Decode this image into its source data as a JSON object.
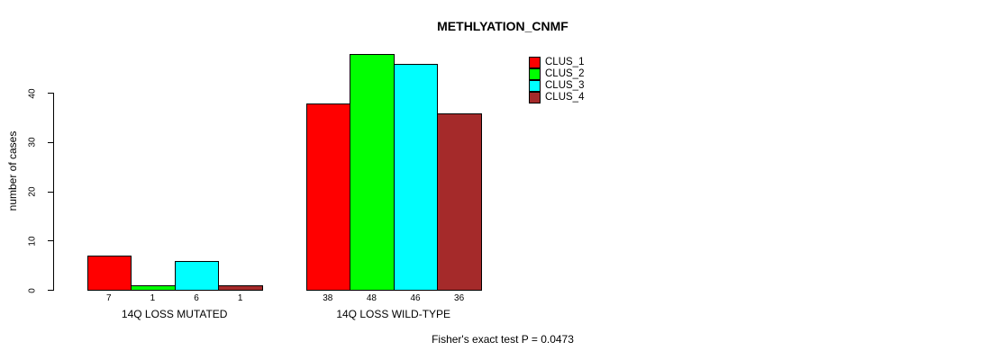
{
  "chart_data": {
    "type": "bar",
    "title": "METHLYATION_CNMF",
    "ylabel": "number of cases",
    "xlabel": "",
    "yticks": [
      0,
      10,
      20,
      30,
      40
    ],
    "ylim": [
      0,
      48
    ],
    "grid": false,
    "categories": [
      "14Q LOSS MUTATED",
      "14Q LOSS WILD-TYPE"
    ],
    "series": [
      {
        "name": "CLUS_1",
        "color": "#FF0000",
        "values": [
          7,
          38
        ]
      },
      {
        "name": "CLUS_2",
        "color": "#00FF00",
        "values": [
          1,
          48
        ]
      },
      {
        "name": "CLUS_3",
        "color": "#00FFFF",
        "values": [
          6,
          46
        ]
      },
      {
        "name": "CLUS_4",
        "color": "#A52A2A",
        "values": [
          1,
          36
        ]
      }
    ],
    "bar_value_labels": [
      [
        "7",
        "1",
        "6",
        "1"
      ],
      [
        "38",
        "48",
        "46",
        "36"
      ]
    ],
    "legend_position": "top-right",
    "annotation": "Fisher's exact test P = 0.0473"
  },
  "colors": {
    "background": "#FFFFFF",
    "axis": "#000000",
    "bar_border": "#000000",
    "text": "#000000"
  }
}
